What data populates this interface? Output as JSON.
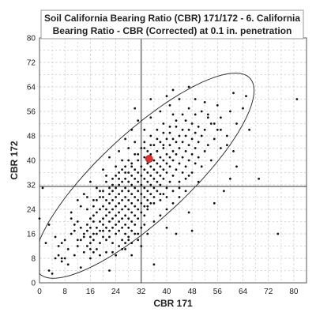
{
  "chart_data": {
    "type": "scatter",
    "title_lines": [
      "Soil California Bearing Ratio (CBR) 171/172 - 6. California",
      "Bearing Ratio - CBR (Corrected) at 0.1 in. penetration"
    ],
    "xlabel": "CBR 171",
    "ylabel": "CBR 172",
    "xlim": [
      0,
      84
    ],
    "ylim": [
      0,
      80
    ],
    "xticks": [
      "0",
      "8",
      "16",
      "24",
      "32",
      "40",
      "48",
      "56",
      "64",
      "72",
      "80"
    ],
    "yticks": [
      "0",
      "8",
      "16",
      "24",
      "32",
      "40",
      "48",
      "56",
      "64",
      "72",
      "80"
    ],
    "grid": true,
    "crosshair": {
      "x": 32,
      "y": 31.5
    },
    "highlight_point": {
      "x": 34.5,
      "y": 40.5
    },
    "ellipse": {
      "cx": 33,
      "cy": 35,
      "rx": 46,
      "ry": 14,
      "angle_deg": 44
    },
    "colors": {
      "points": "#111111",
      "highlight": "#e53030",
      "grid": "#cccccc",
      "crosshair": "#333333",
      "ellipse": "#333333"
    },
    "points": [
      [
        0,
        21
      ],
      [
        1,
        31
      ],
      [
        2,
        13
      ],
      [
        3,
        19
      ],
      [
        3,
        4
      ],
      [
        4,
        3
      ],
      [
        5,
        8
      ],
      [
        6,
        9
      ],
      [
        6,
        12
      ],
      [
        7,
        7
      ],
      [
        7,
        8
      ],
      [
        8,
        8
      ],
      [
        9,
        6
      ],
      [
        8,
        14
      ],
      [
        10,
        16
      ],
      [
        10,
        23
      ],
      [
        11,
        17
      ],
      [
        11,
        19
      ],
      [
        12,
        12
      ],
      [
        12,
        14
      ],
      [
        12,
        20
      ],
      [
        13,
        5
      ],
      [
        13,
        14
      ],
      [
        13,
        18
      ],
      [
        14,
        10
      ],
      [
        14,
        15
      ],
      [
        14,
        16
      ],
      [
        15,
        12
      ],
      [
        15,
        17
      ],
      [
        15,
        19
      ],
      [
        16,
        8
      ],
      [
        16,
        11
      ],
      [
        16,
        13
      ],
      [
        16,
        15
      ],
      [
        16,
        18
      ],
      [
        16,
        21
      ],
      [
        17,
        14
      ],
      [
        17,
        16
      ],
      [
        17,
        20
      ],
      [
        17,
        22
      ],
      [
        17,
        25
      ],
      [
        18,
        11
      ],
      [
        18,
        16
      ],
      [
        18,
        18
      ],
      [
        18,
        23
      ],
      [
        18,
        27
      ],
      [
        19,
        13
      ],
      [
        19,
        17
      ],
      [
        19,
        20
      ],
      [
        19,
        24
      ],
      [
        19,
        28
      ],
      [
        20,
        15
      ],
      [
        20,
        17
      ],
      [
        20,
        19
      ],
      [
        20,
        21
      ],
      [
        20,
        25
      ],
      [
        20,
        30
      ],
      [
        21,
        14
      ],
      [
        21,
        18
      ],
      [
        21,
        22
      ],
      [
        21,
        24
      ],
      [
        21,
        27
      ],
      [
        21,
        33
      ],
      [
        22,
        15
      ],
      [
        22,
        17
      ],
      [
        22,
        20
      ],
      [
        22,
        23
      ],
      [
        22,
        26
      ],
      [
        22,
        29
      ],
      [
        22,
        31
      ],
      [
        23,
        13
      ],
      [
        23,
        18
      ],
      [
        23,
        21
      ],
      [
        23,
        24
      ],
      [
        23,
        27
      ],
      [
        23,
        30
      ],
      [
        23,
        34
      ],
      [
        24,
        16
      ],
      [
        24,
        19
      ],
      [
        24,
        22
      ],
      [
        24,
        25
      ],
      [
        24,
        28
      ],
      [
        24,
        31
      ],
      [
        24,
        35
      ],
      [
        25,
        17
      ],
      [
        25,
        20
      ],
      [
        25,
        23
      ],
      [
        25,
        26
      ],
      [
        25,
        29
      ],
      [
        25,
        32
      ],
      [
        25,
        36
      ],
      [
        26,
        14
      ],
      [
        26,
        18
      ],
      [
        26,
        21
      ],
      [
        26,
        24
      ],
      [
        26,
        27
      ],
      [
        26,
        30
      ],
      [
        26,
        33
      ],
      [
        26,
        37
      ],
      [
        27,
        16
      ],
      [
        27,
        19
      ],
      [
        27,
        22
      ],
      [
        27,
        25
      ],
      [
        27,
        28
      ],
      [
        27,
        31
      ],
      [
        27,
        34
      ],
      [
        27,
        38
      ],
      [
        28,
        15
      ],
      [
        28,
        18
      ],
      [
        28,
        21
      ],
      [
        28,
        24
      ],
      [
        28,
        27
      ],
      [
        28,
        30
      ],
      [
        28,
        33
      ],
      [
        28,
        36
      ],
      [
        28,
        40
      ],
      [
        29,
        17
      ],
      [
        29,
        20
      ],
      [
        29,
        23
      ],
      [
        29,
        26
      ],
      [
        29,
        29
      ],
      [
        29,
        32
      ],
      [
        29,
        35
      ],
      [
        29,
        39
      ],
      [
        30,
        19
      ],
      [
        30,
        22
      ],
      [
        30,
        25
      ],
      [
        30,
        28
      ],
      [
        30,
        31
      ],
      [
        30,
        34
      ],
      [
        30,
        37
      ],
      [
        30,
        42
      ],
      [
        31,
        21
      ],
      [
        31,
        24
      ],
      [
        31,
        27
      ],
      [
        31,
        30
      ],
      [
        31,
        33
      ],
      [
        31,
        36
      ],
      [
        31,
        40
      ],
      [
        32,
        18
      ],
      [
        32,
        23
      ],
      [
        32,
        26
      ],
      [
        32,
        29
      ],
      [
        32,
        32
      ],
      [
        32,
        35
      ],
      [
        32,
        38
      ],
      [
        32,
        44
      ],
      [
        33,
        22
      ],
      [
        33,
        25
      ],
      [
        33,
        28
      ],
      [
        33,
        31
      ],
      [
        33,
        34
      ],
      [
        33,
        37
      ],
      [
        33,
        41
      ],
      [
        33,
        46
      ],
      [
        34,
        24
      ],
      [
        34,
        27
      ],
      [
        34,
        30
      ],
      [
        34,
        33
      ],
      [
        34,
        36
      ],
      [
        34,
        39
      ],
      [
        34,
        43
      ],
      [
        35,
        26
      ],
      [
        35,
        29
      ],
      [
        35,
        32
      ],
      [
        35,
        35
      ],
      [
        35,
        38
      ],
      [
        35,
        42
      ],
      [
        35,
        48
      ],
      [
        36,
        28
      ],
      [
        36,
        31
      ],
      [
        36,
        34
      ],
      [
        36,
        37
      ],
      [
        36,
        40
      ],
      [
        36,
        45
      ],
      [
        37,
        30
      ],
      [
        37,
        33
      ],
      [
        37,
        36
      ],
      [
        37,
        39
      ],
      [
        37,
        43
      ],
      [
        37,
        50
      ],
      [
        38,
        27
      ],
      [
        38,
        32
      ],
      [
        38,
        35
      ],
      [
        38,
        38
      ],
      [
        38,
        41
      ],
      [
        38,
        46
      ],
      [
        39,
        29
      ],
      [
        39,
        34
      ],
      [
        39,
        37
      ],
      [
        39,
        40
      ],
      [
        39,
        44
      ],
      [
        39,
        52
      ],
      [
        40,
        31
      ],
      [
        40,
        36
      ],
      [
        40,
        39
      ],
      [
        40,
        42
      ],
      [
        40,
        47
      ],
      [
        41,
        33
      ],
      [
        41,
        38
      ],
      [
        41,
        41
      ],
      [
        41,
        45
      ],
      [
        41,
        49
      ],
      [
        42,
        30
      ],
      [
        42,
        35
      ],
      [
        42,
        40
      ],
      [
        42,
        43
      ],
      [
        42,
        47
      ],
      [
        42,
        55
      ],
      [
        43,
        37
      ],
      [
        43,
        42
      ],
      [
        43,
        46
      ],
      [
        43,
        51
      ],
      [
        44,
        33
      ],
      [
        44,
        39
      ],
      [
        44,
        44
      ],
      [
        44,
        48
      ],
      [
        45,
        36
      ],
      [
        45,
        41
      ],
      [
        45,
        46
      ],
      [
        45,
        50
      ],
      [
        46,
        38
      ],
      [
        46,
        43
      ],
      [
        46,
        48
      ],
      [
        46,
        53
      ],
      [
        47,
        35
      ],
      [
        47,
        40
      ],
      [
        47,
        45
      ],
      [
        47,
        50
      ],
      [
        48,
        42
      ],
      [
        48,
        47
      ],
      [
        48,
        52
      ],
      [
        49,
        39
      ],
      [
        49,
        44
      ],
      [
        49,
        49
      ],
      [
        50,
        41
      ],
      [
        50,
        46
      ],
      [
        50,
        51
      ],
      [
        51,
        38
      ],
      [
        51,
        48
      ],
      [
        52,
        43
      ],
      [
        52,
        50
      ],
      [
        53,
        45
      ],
      [
        53,
        55
      ],
      [
        54,
        40
      ],
      [
        54,
        52
      ],
      [
        55,
        47
      ],
      [
        56,
        50
      ],
      [
        57,
        44
      ],
      [
        57,
        54
      ],
      [
        59,
        48
      ],
      [
        60,
        56
      ],
      [
        62,
        52
      ],
      [
        64,
        57
      ],
      [
        66,
        50
      ],
      [
        22,
        4
      ],
      [
        24,
        9
      ],
      [
        26,
        11
      ],
      [
        28,
        14
      ],
      [
        30,
        16
      ],
      [
        32,
        12
      ],
      [
        34,
        16
      ],
      [
        36,
        20
      ],
      [
        38,
        22
      ],
      [
        40,
        24
      ],
      [
        42,
        26
      ],
      [
        44,
        28
      ],
      [
        46,
        30
      ],
      [
        20,
        37
      ],
      [
        22,
        41
      ],
      [
        25,
        43
      ],
      [
        27,
        47
      ],
      [
        29,
        50
      ],
      [
        31,
        53
      ],
      [
        30,
        57
      ],
      [
        35,
        60
      ],
      [
        40,
        61
      ],
      [
        42,
        63
      ],
      [
        47,
        64
      ],
      [
        49,
        60
      ],
      [
        52,
        59
      ],
      [
        56,
        58
      ],
      [
        61,
        62
      ],
      [
        65,
        61
      ],
      [
        69,
        34
      ],
      [
        75,
        16
      ],
      [
        81,
        60
      ],
      [
        36,
        6
      ],
      [
        40,
        18
      ],
      [
        43,
        16
      ],
      [
        47,
        23
      ],
      [
        48,
        17
      ],
      [
        55,
        26
      ],
      [
        58,
        30
      ],
      [
        60,
        34
      ],
      [
        62,
        38
      ],
      [
        31,
        16
      ],
      [
        33,
        19
      ],
      [
        29,
        9
      ],
      [
        27,
        11
      ],
      [
        34,
        25
      ],
      [
        36,
        26
      ],
      [
        38,
        29
      ],
      [
        40,
        28
      ],
      [
        44,
        31
      ],
      [
        46,
        34
      ],
      [
        48,
        36
      ],
      [
        50,
        33
      ],
      [
        20,
        28
      ],
      [
        18,
        31
      ],
      [
        16,
        33
      ],
      [
        14,
        29
      ],
      [
        12,
        27
      ],
      [
        24,
        38
      ],
      [
        26,
        40
      ],
      [
        28,
        44
      ],
      [
        30,
        46
      ],
      [
        33,
        50
      ],
      [
        35,
        54
      ],
      [
        38,
        56
      ],
      [
        41,
        58
      ],
      [
        44,
        60
      ],
      [
        37,
        47
      ],
      [
        39,
        49
      ],
      [
        41,
        51
      ],
      [
        43,
        53
      ],
      [
        45,
        55
      ],
      [
        47,
        57
      ],
      [
        49,
        55
      ],
      [
        51,
        56
      ],
      [
        53,
        54
      ],
      [
        55,
        52
      ],
      [
        57,
        50
      ],
      [
        59,
        45
      ],
      [
        61,
        43
      ],
      [
        15,
        24
      ],
      [
        17,
        27
      ],
      [
        19,
        30
      ],
      [
        21,
        35
      ],
      [
        23,
        32
      ],
      [
        25,
        34
      ],
      [
        27,
        36
      ],
      [
        29,
        38
      ],
      [
        31,
        42
      ],
      [
        33,
        44
      ],
      [
        35,
        45
      ],
      [
        37,
        43
      ],
      [
        39,
        45
      ],
      [
        23,
        10
      ],
      [
        25,
        12
      ],
      [
        27,
        13
      ],
      [
        29,
        13
      ],
      [
        31,
        14
      ],
      [
        21,
        10
      ],
      [
        19,
        9
      ],
      [
        17,
        10
      ],
      [
        11,
        9
      ],
      [
        9,
        11
      ],
      [
        7,
        13
      ],
      [
        5,
        15
      ],
      [
        10,
        21
      ],
      [
        13,
        25
      ],
      [
        15,
        28
      ]
    ]
  }
}
